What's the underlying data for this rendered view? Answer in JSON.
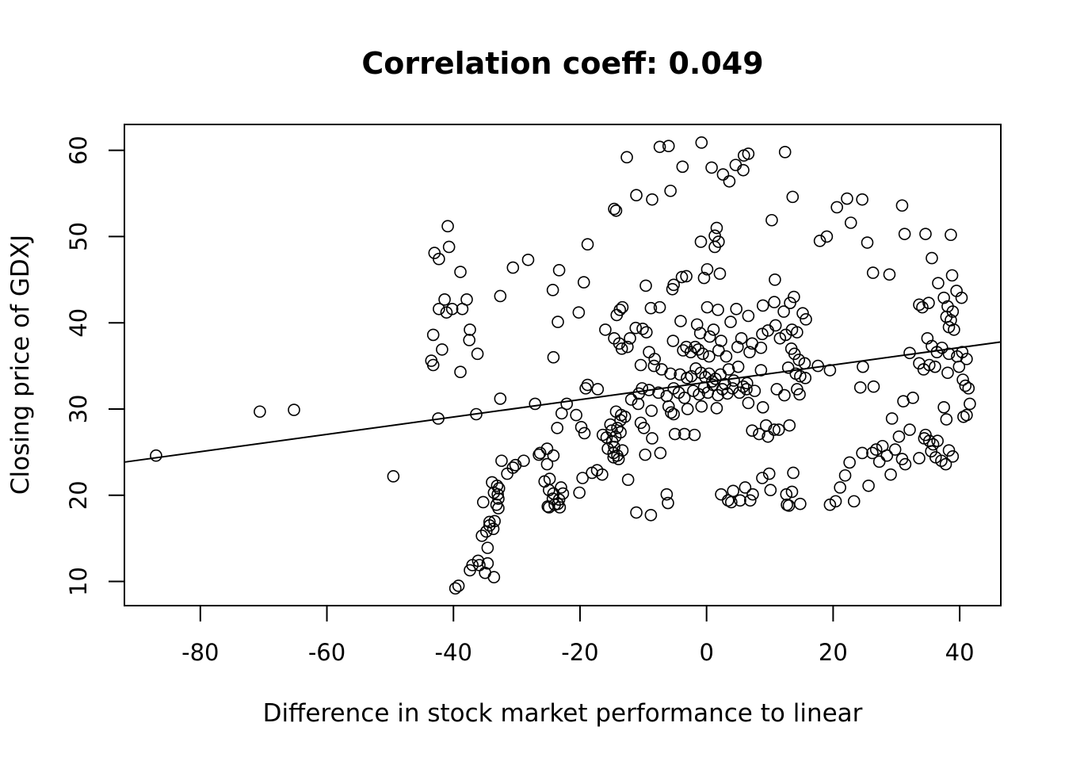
{
  "chart_data": {
    "type": "scatter",
    "title": "Correlation coeff: 0.049",
    "xlabel": "Difference in stock market performance to linear",
    "ylabel": "Closing price of GDXJ",
    "xlim": [
      -92,
      46.5
    ],
    "ylim": [
      7.2,
      63
    ],
    "xticks": [
      -80,
      -60,
      -40,
      -20,
      0,
      20,
      40
    ],
    "yticks": [
      10,
      20,
      30,
      40,
      50,
      60
    ],
    "xtick_labels": [
      "-80",
      "-60",
      "-40",
      "-20",
      "0",
      "20",
      "40"
    ],
    "ytick_labels": [
      "10",
      "20",
      "30",
      "40",
      "50",
      "60"
    ],
    "grid": false,
    "legend": "none",
    "trend_line": {
      "slope": 0.1006,
      "intercept": 33.1
    },
    "points": [
      [
        -87,
        24.6
      ],
      [
        -70.6,
        29.7
      ],
      [
        -65.2,
        29.9
      ],
      [
        -49.5,
        22.2
      ],
      [
        -40.9,
        51.2
      ],
      [
        -40.7,
        48.8
      ],
      [
        -43,
        48.1
      ],
      [
        -42.3,
        47.4
      ],
      [
        -38.9,
        45.9
      ],
      [
        -41.4,
        42.7
      ],
      [
        -37.9,
        42.7
      ],
      [
        -42.3,
        41.6
      ],
      [
        -40.2,
        41.6
      ],
      [
        -41.1,
        41.2
      ],
      [
        -38.6,
        41.6
      ],
      [
        -37.4,
        39.2
      ],
      [
        -43.2,
        38.6
      ],
      [
        -37.5,
        38.0
      ],
      [
        -41.8,
        36.9
      ],
      [
        -36.2,
        36.4
      ],
      [
        -43.5,
        35.6
      ],
      [
        -43.2,
        35.1
      ],
      [
        -38.9,
        34.3
      ],
      [
        -32.6,
        31.2
      ],
      [
        -42.4,
        28.9
      ],
      [
        -36.4,
        29.4
      ],
      [
        -32.6,
        43.1
      ],
      [
        -30.6,
        46.4
      ],
      [
        -28.2,
        47.3
      ],
      [
        -24.3,
        43.8
      ],
      [
        -23.3,
        46.1
      ],
      [
        -23.5,
        40.1
      ],
      [
        -19.4,
        44.7
      ],
      [
        -18.8,
        49.1
      ],
      [
        -20.2,
        41.2
      ],
      [
        -24.2,
        36.0
      ],
      [
        -27.1,
        30.6
      ],
      [
        -22.1,
        30.6
      ],
      [
        -22.9,
        29.5
      ],
      [
        -20.6,
        29.3
      ],
      [
        -19.8,
        27.9
      ],
      [
        -19.3,
        27.2
      ],
      [
        -23.6,
        27.8
      ],
      [
        -26.5,
        24.7
      ],
      [
        -25.2,
        25.4
      ],
      [
        -24.2,
        24.6
      ],
      [
        -25.2,
        23.6
      ],
      [
        -28.9,
        24.0
      ],
      [
        -30.2,
        23.5
      ],
      [
        -30.6,
        23.2
      ],
      [
        -32.4,
        24.0
      ],
      [
        -31.5,
        22.5
      ],
      [
        -25.6,
        21.6
      ],
      [
        -24.8,
        21.9
      ],
      [
        -26.3,
        24.9
      ],
      [
        -24.9,
        20.6
      ],
      [
        -23.0,
        20.9
      ],
      [
        -22.7,
        20.2
      ],
      [
        -24.3,
        19.6
      ],
      [
        -23.3,
        19.5
      ],
      [
        -23.5,
        19.0
      ],
      [
        -24.0,
        18.9
      ],
      [
        -24.9,
        18.6
      ],
      [
        -25.1,
        18.7
      ],
      [
        -23.2,
        18.6
      ],
      [
        -24.2,
        20.2
      ],
      [
        -33.9,
        21.5
      ],
      [
        -33.1,
        21.1
      ],
      [
        -32.8,
        20.8
      ],
      [
        -33.0,
        20.1
      ],
      [
        -32.9,
        19.6
      ],
      [
        -33.6,
        20.3
      ],
      [
        -33.2,
        18.9
      ],
      [
        -32.9,
        18.5
      ],
      [
        -35.3,
        19.2
      ],
      [
        -34.3,
        16.9
      ],
      [
        -33.5,
        17.0
      ],
      [
        -34.3,
        16.5
      ],
      [
        -33.7,
        16.1
      ],
      [
        -34.8,
        15.8
      ],
      [
        -35.5,
        15.3
      ],
      [
        -34.6,
        13.9
      ],
      [
        -36.1,
        12.4
      ],
      [
        -35.9,
        11.9
      ],
      [
        -37.0,
        11.9
      ],
      [
        -34.6,
        12.1
      ],
      [
        -37.4,
        11.3
      ],
      [
        -35.0,
        11.0
      ],
      [
        -33.6,
        10.5
      ],
      [
        -39.2,
        9.5
      ],
      [
        -39.7,
        9.2
      ],
      [
        -12.6,
        59.2
      ],
      [
        -11.1,
        54.8
      ],
      [
        -14.6,
        53.2
      ],
      [
        -14.3,
        53.0
      ],
      [
        -8.6,
        54.3
      ],
      [
        -7.4,
        60.4
      ],
      [
        -6.0,
        60.5
      ],
      [
        -5.7,
        55.3
      ],
      [
        -3.8,
        58.1
      ],
      [
        -0.8,
        60.9
      ],
      [
        0.8,
        58.0
      ],
      [
        2.6,
        57.2
      ],
      [
        3.6,
        56.4
      ],
      [
        4.6,
        58.3
      ],
      [
        5.9,
        59.4
      ],
      [
        6.6,
        59.6
      ],
      [
        5.8,
        57.7
      ],
      [
        12.4,
        59.8
      ],
      [
        13.6,
        54.6
      ],
      [
        10.3,
        51.9
      ],
      [
        1.6,
        51.0
      ],
      [
        1.3,
        50.1
      ],
      [
        1.9,
        49.4
      ],
      [
        -0.9,
        49.4
      ],
      [
        1.3,
        48.8
      ],
      [
        0.1,
        46.2
      ],
      [
        -0.4,
        45.2
      ],
      [
        2.1,
        45.7
      ],
      [
        -3.9,
        45.3
      ],
      [
        -3.2,
        45.4
      ],
      [
        -5.2,
        44.4
      ],
      [
        -5.4,
        43.9
      ],
      [
        -9.6,
        44.3
      ],
      [
        10.8,
        45.0
      ],
      [
        -13.3,
        41.8
      ],
      [
        -13.7,
        41.5
      ],
      [
        -14.2,
        40.9
      ],
      [
        -8.8,
        41.7
      ],
      [
        -7.4,
        41.8
      ],
      [
        0.1,
        41.8
      ],
      [
        1.8,
        41.5
      ],
      [
        4.7,
        41.6
      ],
      [
        6.6,
        40.8
      ],
      [
        3.8,
        40.1
      ],
      [
        -4.1,
        40.2
      ],
      [
        -10.1,
        39.3
      ],
      [
        -9.5,
        38.9
      ],
      [
        -11.2,
        39.4
      ],
      [
        -16.0,
        39.2
      ],
      [
        -14.6,
        38.2
      ],
      [
        -12.1,
        38.2
      ],
      [
        -1.0,
        38.8
      ],
      [
        -1.5,
        39.8
      ],
      [
        0.5,
        38.4
      ],
      [
        1.1,
        39.2
      ],
      [
        2.3,
        37.9
      ],
      [
        5.5,
        38.2
      ],
      [
        7.2,
        37.6
      ],
      [
        8.8,
        38.7
      ],
      [
        9.7,
        39.1
      ],
      [
        11.6,
        38.2
      ],
      [
        -13.8,
        37.6
      ],
      [
        -12.5,
        37.2
      ],
      [
        -13.4,
        37.0
      ],
      [
        -9.1,
        36.6
      ],
      [
        -8.2,
        35.8
      ],
      [
        -5.3,
        37.9
      ],
      [
        -3.7,
        36.8
      ],
      [
        -3.2,
        37.2
      ],
      [
        -2.5,
        36.6
      ],
      [
        -1.8,
        37.2
      ],
      [
        -1.3,
        36.9
      ],
      [
        -0.6,
        36.4
      ],
      [
        0.4,
        36.1
      ],
      [
        1.9,
        36.8
      ],
      [
        3.1,
        36.1
      ],
      [
        4.9,
        37.2
      ],
      [
        6.8,
        36.6
      ],
      [
        8.6,
        37.1
      ],
      [
        -10.4,
        35.1
      ],
      [
        -8.3,
        35.0
      ],
      [
        -7.1,
        34.6
      ],
      [
        -5.7,
        34.1
      ],
      [
        -4.2,
        34.0
      ],
      [
        -3.1,
        33.6
      ],
      [
        -2.4,
        33.8
      ],
      [
        -1.7,
        34.7
      ],
      [
        -0.9,
        34.2
      ],
      [
        -0.2,
        33.7
      ],
      [
        0.4,
        34.1
      ],
      [
        0.9,
        33.2
      ],
      [
        1.4,
        33.5
      ],
      [
        2.2,
        34.0
      ],
      [
        2.9,
        32.9
      ],
      [
        3.5,
        34.6
      ],
      [
        4.3,
        33.3
      ],
      [
        5.0,
        34.9
      ],
      [
        5.8,
        32.6
      ],
      [
        6.4,
        33.0
      ],
      [
        8.6,
        34.5
      ],
      [
        -10.7,
        31.8
      ],
      [
        -10.2,
        32.4
      ],
      [
        -9.1,
        32.2
      ],
      [
        -7.6,
        31.9
      ],
      [
        -6.3,
        31.5
      ],
      [
        -5.2,
        32.4
      ],
      [
        -4.4,
        31.9
      ],
      [
        -3.5,
        31.3
      ],
      [
        -2.1,
        32.1
      ],
      [
        -1.2,
        31.7
      ],
      [
        -0.4,
        32.5
      ],
      [
        0.2,
        31.9
      ],
      [
        1.0,
        32.8
      ],
      [
        1.8,
        31.6
      ],
      [
        2.5,
        32.3
      ],
      [
        3.3,
        31.8
      ],
      [
        4.1,
        32.4
      ],
      [
        5.2,
        31.9
      ],
      [
        6.3,
        32.3
      ],
      [
        7.6,
        32.1
      ],
      [
        -11.9,
        31.1
      ],
      [
        -10.8,
        30.6
      ],
      [
        -8.7,
        29.8
      ],
      [
        -6.0,
        30.3
      ],
      [
        -3.0,
        30.0
      ],
      [
        -0.8,
        30.3
      ],
      [
        1.6,
        30.1
      ],
      [
        6.6,
        30.7
      ],
      [
        8.9,
        30.2
      ],
      [
        -14.3,
        29.7
      ],
      [
        -13.5,
        29.3
      ],
      [
        -12.9,
        29.1
      ],
      [
        -13.6,
        28.7
      ],
      [
        -10.4,
        28.4
      ],
      [
        -9.9,
        27.8
      ],
      [
        -8.6,
        26.6
      ],
      [
        -5.6,
        29.6
      ],
      [
        -5.2,
        29.4
      ],
      [
        -3.5,
        27.1
      ],
      [
        -1.9,
        27.0
      ],
      [
        -5.0,
        27.1
      ],
      [
        -15.2,
        28.2
      ],
      [
        -15.0,
        27.5
      ],
      [
        -14.1,
        27.8
      ],
      [
        -13.6,
        27.3
      ],
      [
        -14.4,
        26.8
      ],
      [
        -15.8,
        26.7
      ],
      [
        -16.4,
        27.0
      ],
      [
        -14.9,
        26.2
      ],
      [
        -14.6,
        25.6
      ],
      [
        -13.3,
        25.2
      ],
      [
        -15.6,
        25.4
      ],
      [
        -14.7,
        24.9
      ],
      [
        -14.1,
        24.6
      ],
      [
        -14.7,
        24.4
      ],
      [
        -13.9,
        24.2
      ],
      [
        -17.2,
        32.3
      ],
      [
        -18.8,
        32.8
      ],
      [
        -19.1,
        32.4
      ],
      [
        -16.5,
        22.4
      ],
      [
        -17.3,
        22.9
      ],
      [
        -18.1,
        22.6
      ],
      [
        -19.6,
        22.0
      ],
      [
        -20.1,
        20.3
      ],
      [
        -12.4,
        21.8
      ],
      [
        -7.3,
        24.9
      ],
      [
        -9.7,
        24.7
      ],
      [
        -11.1,
        18.0
      ],
      [
        -8.8,
        17.7
      ],
      [
        -6.3,
        20.1
      ],
      [
        -6.1,
        19.1
      ],
      [
        2.3,
        20.1
      ],
      [
        3.4,
        19.4
      ],
      [
        3.9,
        19.2
      ],
      [
        4.2,
        20.5
      ],
      [
        5.3,
        19.4
      ],
      [
        6.1,
        20.9
      ],
      [
        6.9,
        19.4
      ],
      [
        7.3,
        20.1
      ],
      [
        8.8,
        22.0
      ],
      [
        9.9,
        22.5
      ],
      [
        10.1,
        20.6
      ],
      [
        12.6,
        20.1
      ],
      [
        12.7,
        18.9
      ],
      [
        13.5,
        20.4
      ],
      [
        13.7,
        22.6
      ],
      [
        14.8,
        19.0
      ],
      [
        13.0,
        18.8
      ],
      [
        7.2,
        27.5
      ],
      [
        8.3,
        27.1
      ],
      [
        9.4,
        28.1
      ],
      [
        10.7,
        27.6
      ],
      [
        11.4,
        27.6
      ],
      [
        13.1,
        28.1
      ],
      [
        9.7,
        26.8
      ],
      [
        8.9,
        42.0
      ],
      [
        10.7,
        42.4
      ],
      [
        12.2,
        41.3
      ],
      [
        13.2,
        42.3
      ],
      [
        13.8,
        43.0
      ],
      [
        15.2,
        41.1
      ],
      [
        15.7,
        40.4
      ],
      [
        13.5,
        39.2
      ],
      [
        14.3,
        38.9
      ],
      [
        10.9,
        39.7
      ],
      [
        12.5,
        38.6
      ],
      [
        13.4,
        37.0
      ],
      [
        13.9,
        36.4
      ],
      [
        14.6,
        35.7
      ],
      [
        15.5,
        35.3
      ],
      [
        12.9,
        34.8
      ],
      [
        14.1,
        34.1
      ],
      [
        14.8,
        33.8
      ],
      [
        15.6,
        33.6
      ],
      [
        11.1,
        32.3
      ],
      [
        12.3,
        31.6
      ],
      [
        14.3,
        32.3
      ],
      [
        14.7,
        31.7
      ],
      [
        17.9,
        49.5
      ],
      [
        19.0,
        50.0
      ],
      [
        20.6,
        53.4
      ],
      [
        22.2,
        54.4
      ],
      [
        22.8,
        51.6
      ],
      [
        24.6,
        54.3
      ],
      [
        25.4,
        49.3
      ],
      [
        26.3,
        45.8
      ],
      [
        28.9,
        45.6
      ],
      [
        17.6,
        35.0
      ],
      [
        19.5,
        34.5
      ],
      [
        24.3,
        32.5
      ],
      [
        24.7,
        34.9
      ],
      [
        26.4,
        32.6
      ],
      [
        29.3,
        28.9
      ],
      [
        31.1,
        30.9
      ],
      [
        32.6,
        31.3
      ],
      [
        19.5,
        18.9
      ],
      [
        20.4,
        19.3
      ],
      [
        21.1,
        20.9
      ],
      [
        21.9,
        22.3
      ],
      [
        22.6,
        23.8
      ],
      [
        23.3,
        19.3
      ],
      [
        24.6,
        24.9
      ],
      [
        25.6,
        21.1
      ],
      [
        26.2,
        24.9
      ],
      [
        26.8,
        25.3
      ],
      [
        27.3,
        23.9
      ],
      [
        27.8,
        25.7
      ],
      [
        28.5,
        24.6
      ],
      [
        29.1,
        22.4
      ],
      [
        29.8,
        25.3
      ],
      [
        30.4,
        26.8
      ],
      [
        30.9,
        24.2
      ],
      [
        31.4,
        23.6
      ],
      [
        32.1,
        27.6
      ],
      [
        30.9,
        53.6
      ],
      [
        31.3,
        50.3
      ],
      [
        34.6,
        50.3
      ],
      [
        38.6,
        50.2
      ],
      [
        35.6,
        47.5
      ],
      [
        38.8,
        45.5
      ],
      [
        36.6,
        44.6
      ],
      [
        39.5,
        43.7
      ],
      [
        40.3,
        42.9
      ],
      [
        35.1,
        42.3
      ],
      [
        33.6,
        42.1
      ],
      [
        34.1,
        41.8
      ],
      [
        37.5,
        42.9
      ],
      [
        38.1,
        41.9
      ],
      [
        38.9,
        41.3
      ],
      [
        37.9,
        40.7
      ],
      [
        38.6,
        40.3
      ],
      [
        38.3,
        39.5
      ],
      [
        39.1,
        39.2
      ],
      [
        34.9,
        38.2
      ],
      [
        35.6,
        37.3
      ],
      [
        36.4,
        36.6
      ],
      [
        37.2,
        37.1
      ],
      [
        38.3,
        36.4
      ],
      [
        39.6,
        36.1
      ],
      [
        40.4,
        36.6
      ],
      [
        41.1,
        35.8
      ],
      [
        32.1,
        36.5
      ],
      [
        33.6,
        35.3
      ],
      [
        34.3,
        34.6
      ],
      [
        35.2,
        35.1
      ],
      [
        36.1,
        34.9
      ],
      [
        38.1,
        34.2
      ],
      [
        39.9,
        34.9
      ],
      [
        40.5,
        33.4
      ],
      [
        40.9,
        32.7
      ],
      [
        41.4,
        32.4
      ],
      [
        41.6,
        30.6
      ],
      [
        40.6,
        29.1
      ],
      [
        41.1,
        29.3
      ],
      [
        37.5,
        30.2
      ],
      [
        37.9,
        28.8
      ],
      [
        33.6,
        24.3
      ],
      [
        34.4,
        26.6
      ],
      [
        35.2,
        26.3
      ],
      [
        35.8,
        25.9
      ],
      [
        36.5,
        26.3
      ],
      [
        37.1,
        24.0
      ],
      [
        37.8,
        23.6
      ],
      [
        38.3,
        25.2
      ],
      [
        38.9,
        24.5
      ],
      [
        36.2,
        24.4
      ],
      [
        35.5,
        25.1
      ],
      [
        34.6,
        27.0
      ]
    ]
  }
}
